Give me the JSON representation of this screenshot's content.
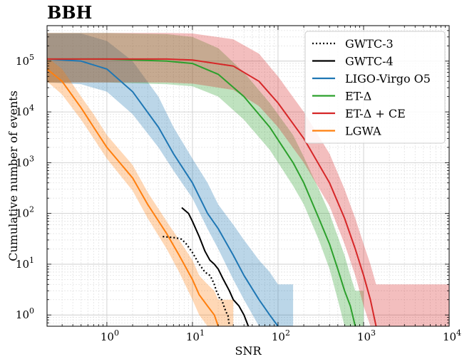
{
  "chart_data": {
    "type": "line",
    "title": "BBH",
    "xlabel": "SNR",
    "ylabel": "Cumulative number of events",
    "xscale": "log",
    "yscale": "log",
    "xlim": [
      0.2,
      10000
    ],
    "ylim": [
      0.6,
      500000
    ],
    "grid": true,
    "legend_position": "top-right",
    "xticks": [
      {
        "value": 1,
        "label": "10^0"
      },
      {
        "value": 10,
        "label": "10^1"
      },
      {
        "value": 100,
        "label": "10^2"
      },
      {
        "value": 1000,
        "label": "10^3"
      },
      {
        "value": 10000,
        "label": "10^4"
      }
    ],
    "yticks": [
      {
        "value": 1,
        "label": "10^0"
      },
      {
        "value": 10,
        "label": "10^1"
      },
      {
        "value": 100,
        "label": "10^2"
      },
      {
        "value": 1000,
        "label": "10^3"
      },
      {
        "value": 10000,
        "label": "10^4"
      },
      {
        "value": 100000,
        "label": "10^5"
      }
    ],
    "series": [
      {
        "name": "GWTC-3",
        "color": "#000000",
        "style": "dotted",
        "x": [
          4.5,
          6.5,
          7.5,
          8.5,
          10,
          12,
          14,
          16,
          17,
          18,
          19,
          20,
          21,
          22,
          23,
          24,
          25,
          26,
          27
        ],
        "y": [
          35,
          33,
          31,
          25,
          17,
          10,
          7,
          6,
          5,
          4,
          3,
          2.5,
          2,
          2,
          1.6,
          1.3,
          1.1,
          1,
          0.6
        ]
      },
      {
        "name": "GWTC-4",
        "color": "#000000",
        "style": "solid",
        "x": [
          7.5,
          9,
          10,
          12,
          14,
          16,
          18,
          20,
          23,
          27,
          30,
          35,
          40,
          45
        ],
        "y": [
          130,
          100,
          70,
          35,
          18,
          12,
          10,
          8,
          5,
          3,
          2,
          1.5,
          1,
          0.6
        ]
      },
      {
        "name": "LIGO-Virgo O5",
        "color": "#1f77b4",
        "style": "solid",
        "x": [
          0.2,
          0.5,
          1,
          2,
          4,
          6,
          10,
          15,
          20,
          30,
          40,
          60,
          80,
          100
        ],
        "y": [
          110000,
          100000,
          70000,
          25000,
          5000,
          1500,
          400,
          100,
          50,
          15,
          6,
          2,
          1,
          0.6
        ],
        "band_lower": [
          38000,
          35000,
          25000,
          9000,
          2000,
          700,
          200,
          50,
          20,
          5,
          2,
          0.6,
          0.6,
          0.6
        ],
        "band_upper": [
          350000,
          350000,
          250000,
          100000,
          20000,
          5000,
          1200,
          400,
          150,
          60,
          30,
          12,
          7,
          4
        ],
        "band_x_end": 150
      },
      {
        "name": "ET-Δ",
        "color": "#2ca02c",
        "style": "solid",
        "x": [
          0.2,
          1,
          5,
          10,
          20,
          40,
          80,
          150,
          200,
          300,
          400,
          500,
          600,
          700,
          800
        ],
        "y": [
          110000,
          110000,
          100000,
          90000,
          55000,
          20000,
          5000,
          1000,
          400,
          80,
          25,
          8,
          3,
          1.5,
          0.6
        ],
        "band_lower": [
          38000,
          38000,
          35000,
          32000,
          20000,
          7000,
          1800,
          350,
          150,
          30,
          8,
          2,
          0.6,
          0.6,
          0.6
        ],
        "band_upper": [
          360000,
          360000,
          340000,
          300000,
          180000,
          60000,
          15000,
          3500,
          1300,
          300,
          100,
          35,
          15,
          6,
          3
        ],
        "band_x_end": 1000
      },
      {
        "name": "ET-Δ + CE",
        "color": "#d62728",
        "style": "solid",
        "x": [
          0.2,
          1,
          5,
          10,
          30,
          60,
          100,
          200,
          400,
          600,
          800,
          1000,
          1200,
          1400
        ],
        "y": [
          110000,
          110000,
          110000,
          105000,
          80000,
          40000,
          15000,
          3000,
          400,
          80,
          20,
          6,
          2,
          0.6
        ],
        "band_lower": [
          38000,
          38000,
          38000,
          36000,
          27000,
          13000,
          5000,
          1000,
          140,
          25,
          6,
          1.5,
          0.6,
          0.6
        ],
        "band_upper": [
          360000,
          360000,
          360000,
          350000,
          270000,
          140000,
          50000,
          10000,
          1500,
          300,
          80,
          25,
          10,
          4
        ],
        "band_x_end": 10000
      },
      {
        "name": "LGWA",
        "color": "#ff7f0e",
        "style": "solid",
        "x": [
          0.2,
          0.3,
          0.5,
          0.7,
          1,
          2,
          3,
          5,
          7,
          10,
          12,
          15,
          18,
          20
        ],
        "y": [
          70000,
          40000,
          12000,
          5000,
          2000,
          500,
          150,
          40,
          15,
          5,
          2.5,
          1.5,
          1,
          0.6
        ],
        "band_lower": [
          40000,
          22000,
          7000,
          3000,
          1200,
          280,
          80,
          20,
          7,
          2,
          1,
          0.6,
          0.6,
          0.6
        ],
        "band_upper": [
          120000,
          70000,
          20000,
          9000,
          3500,
          900,
          260,
          70,
          30,
          12,
          6,
          4,
          3,
          2
        ],
        "band_x_end": 30
      }
    ],
    "legend": [
      "GWTC-3",
      "GWTC-4",
      "LIGO-Virgo O5",
      "ET-Δ",
      "ET-Δ + CE",
      "LGWA"
    ]
  }
}
